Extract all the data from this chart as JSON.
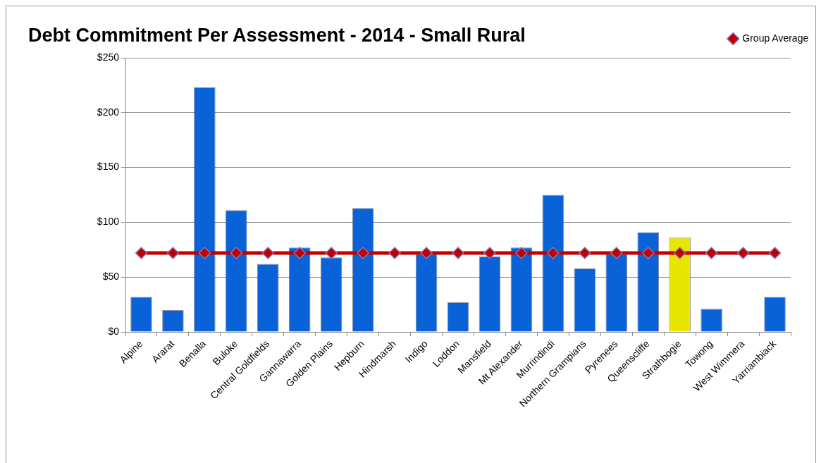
{
  "chart_data": {
    "type": "bar",
    "title": "Debt Commitment Per Assessment - 2014 - Small Rural",
    "categories": [
      "Alpine",
      "Ararat",
      "Benalla",
      "Buloke",
      "Central Goldfields",
      "Gannawarra",
      "Golden Plains",
      "Hepburn",
      "Hindmarsh",
      "Indigo",
      "Loddon",
      "Mansfield",
      "Mt Alexander",
      "Murrindindi",
      "Northern Grampians",
      "Pyrenees",
      "Queenscliffe",
      "Strathbogie",
      "Towong",
      "West Wimmera",
      "Yarriambiack"
    ],
    "series": [
      {
        "colors": [
          "#0a62d8",
          "#0a62d8",
          "#0a62d8",
          "#0a62d8",
          "#0a62d8",
          "#0a62d8",
          "#0a62d8",
          "#0a62d8",
          "#0a62d8",
          "#0a62d8",
          "#0a62d8",
          "#0a62d8",
          "#0a62d8",
          "#0a62d8",
          "#0a62d8",
          "#0a62d8",
          "#0a62d8",
          "#e6e600",
          "#0a62d8",
          "#0a62d8",
          "#0a62d8"
        ],
        "values": [
          32,
          20,
          223,
          111,
          62,
          77,
          68,
          113,
          null,
          71,
          27,
          69,
          77,
          125,
          58,
          71,
          91,
          86,
          21,
          null,
          32
        ]
      },
      {
        "type": "line",
        "name": "Group Average",
        "color": "#c00000",
        "values": [
          72,
          72,
          72,
          72,
          72,
          72,
          72,
          72,
          72,
          72,
          72,
          72,
          72,
          72,
          72,
          72,
          72,
          72,
          72,
          72,
          72
        ]
      }
    ],
    "ylim": [
      0,
      250
    ],
    "yticks": [
      {
        "value": 0,
        "label": "$0"
      },
      {
        "value": 50,
        "label": "$50"
      },
      {
        "value": 100,
        "label": "$100"
      },
      {
        "value": 150,
        "label": "$150"
      },
      {
        "value": 200,
        "label": "$200"
      },
      {
        "value": 250,
        "label": "$250"
      }
    ],
    "grid": "y",
    "legend": "top right",
    "marker": "diamond",
    "line_style": "solid"
  }
}
